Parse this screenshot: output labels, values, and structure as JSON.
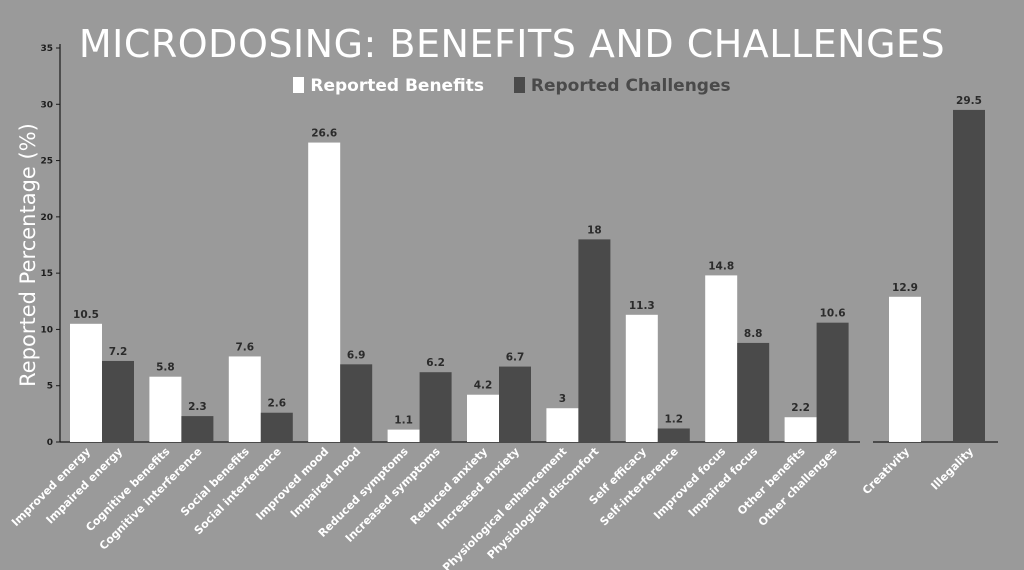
{
  "colors": {
    "background": "#9a9a9a",
    "benefit": "#ffffff",
    "challenge": "#4a4a4a",
    "axis": "#1a1a1a"
  },
  "chart_data": {
    "type": "bar",
    "title": "MICRODOSING: BENEFITS AND CHALLENGES",
    "ylabel": "Reported Percentage (%)",
    "xlabel": "",
    "ylim": [
      0,
      35
    ],
    "yticks": [
      0,
      5,
      10,
      15,
      20,
      25,
      30,
      35
    ],
    "legend": {
      "placement": "top-center",
      "entries": [
        "Reported Benefits",
        "Reported Challenges"
      ]
    },
    "grid": false,
    "pairs": [
      {
        "benefit": {
          "label": "Improved energy",
          "value": 10.5
        },
        "challenge": {
          "label": "Impaired energy",
          "value": 7.2
        }
      },
      {
        "benefit": {
          "label": "Cognitive benefits",
          "value": 5.8
        },
        "challenge": {
          "label": "Cognitive interference",
          "value": 2.3
        }
      },
      {
        "benefit": {
          "label": "Social benefits",
          "value": 7.6
        },
        "challenge": {
          "label": "Social interference",
          "value": 2.6
        }
      },
      {
        "benefit": {
          "label": "Improved mood",
          "value": 26.6
        },
        "challenge": {
          "label": "Impaired mood",
          "value": 6.9
        }
      },
      {
        "benefit": {
          "label": "Reduced symptoms",
          "value": 1.1
        },
        "challenge": {
          "label": "Increased symptoms",
          "value": 6.2
        }
      },
      {
        "benefit": {
          "label": "Reduced anxiety",
          "value": 4.2
        },
        "challenge": {
          "label": "Increased anxiety",
          "value": 6.7
        }
      },
      {
        "benefit": {
          "label": "Physiological enhancement",
          "value": 3
        },
        "challenge": {
          "label": "Physiological discomfort",
          "value": 18
        }
      },
      {
        "benefit": {
          "label": "Self efficacy",
          "value": 11.3
        },
        "challenge": {
          "label": "Self-interference",
          "value": 1.2
        }
      },
      {
        "benefit": {
          "label": "Improved focus",
          "value": 14.8
        },
        "challenge": {
          "label": "Impaired focus",
          "value": 8.8
        }
      },
      {
        "benefit": {
          "label": "Other benefits",
          "value": 2.2
        },
        "challenge": {
          "label": "Other challenges",
          "value": 10.6
        }
      }
    ],
    "standalone": [
      {
        "label": "Creativity",
        "value": 12.9,
        "series": "benefit"
      },
      {
        "label": "Illegality",
        "value": 29.5,
        "series": "challenge"
      }
    ]
  }
}
